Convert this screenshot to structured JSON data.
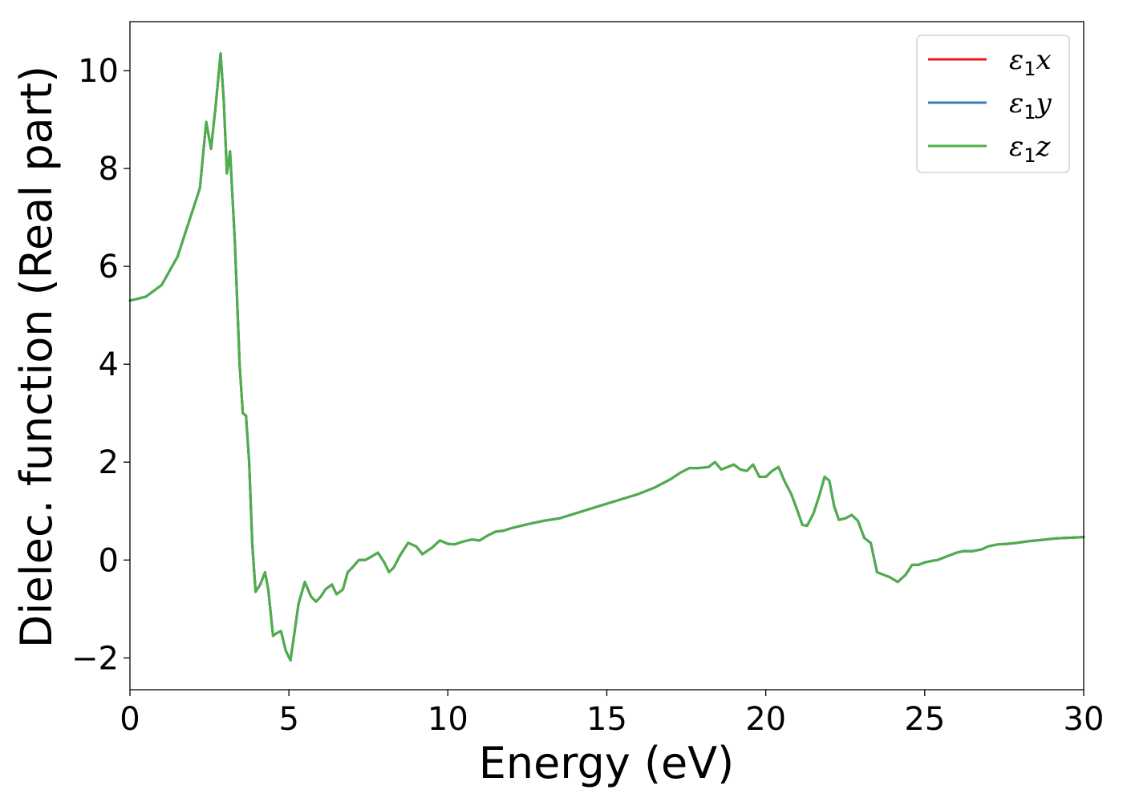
{
  "chart_data": {
    "type": "line",
    "title": "",
    "xlabel": "Energy (eV)",
    "ylabel": "Dielec. function (Real part)",
    "xlim": [
      0,
      30
    ],
    "ylim": [
      -2.65,
      11.0
    ],
    "xticks": [
      0,
      5,
      10,
      15,
      20,
      25,
      30
    ],
    "xtick_labels": [
      "0",
      "5",
      "10",
      "15",
      "20",
      "25",
      "30"
    ],
    "yticks": [
      -2,
      0,
      2,
      4,
      6,
      8,
      10
    ],
    "ytick_labels": [
      "−2",
      "0",
      "2",
      "4",
      "6",
      "8",
      "10"
    ],
    "grid": false,
    "legend_position": "top-right",
    "series": [
      {
        "name": "ε1x",
        "symbol": "ε",
        "subscript": "1",
        "axis_letter": "x",
        "color": "#e41a1c"
      },
      {
        "name": "ε1y",
        "symbol": "ε",
        "subscript": "1",
        "axis_letter": "y",
        "color": "#377eb8"
      },
      {
        "name": "ε1z",
        "symbol": "ε",
        "subscript": "1",
        "axis_letter": "z",
        "color": "#4daf4a"
      }
    ],
    "x": [
      0,
      0.5,
      1.0,
      1.5,
      1.8,
      2.0,
      2.2,
      2.4,
      2.55,
      2.7,
      2.85,
      2.95,
      3.05,
      3.15,
      3.3,
      3.45,
      3.55,
      3.65,
      3.75,
      3.85,
      3.95,
      4.1,
      4.25,
      4.35,
      4.5,
      4.6,
      4.75,
      4.9,
      5.05,
      5.15,
      5.3,
      5.5,
      5.7,
      5.85,
      6.0,
      6.15,
      6.35,
      6.5,
      6.7,
      6.85,
      7.0,
      7.2,
      7.4,
      7.6,
      7.8,
      8.0,
      8.15,
      8.3,
      8.5,
      8.75,
      9.0,
      9.2,
      9.5,
      9.75,
      10.0,
      10.2,
      10.5,
      10.75,
      11.0,
      11.25,
      11.5,
      11.75,
      12.0,
      12.5,
      13.0,
      13.5,
      14.0,
      14.5,
      15.0,
      15.5,
      16.0,
      16.5,
      17.0,
      17.3,
      17.6,
      17.9,
      18.2,
      18.4,
      18.6,
      18.8,
      19.0,
      19.2,
      19.4,
      19.6,
      19.8,
      20.0,
      20.2,
      20.4,
      20.6,
      20.8,
      21.0,
      21.15,
      21.3,
      21.5,
      21.7,
      21.85,
      22.0,
      22.15,
      22.3,
      22.5,
      22.7,
      22.9,
      23.1,
      23.3,
      23.5,
      23.7,
      23.9,
      24.15,
      24.4,
      24.6,
      24.8,
      25.0,
      25.2,
      25.4,
      25.6,
      25.8,
      26.0,
      26.2,
      26.5,
      26.8,
      27.0,
      27.3,
      27.6,
      27.9,
      28.2,
      28.5,
      28.8,
      29.1,
      29.4,
      29.7,
      30.0
    ],
    "values": [
      5.3,
      5.38,
      5.62,
      6.2,
      6.8,
      7.2,
      7.6,
      8.95,
      8.4,
      9.3,
      10.35,
      9.4,
      7.9,
      8.35,
      6.5,
      4.0,
      3.0,
      2.95,
      2.0,
      0.3,
      -0.65,
      -0.5,
      -0.25,
      -0.6,
      -1.55,
      -1.5,
      -1.45,
      -1.85,
      -2.05,
      -1.6,
      -0.9,
      -0.45,
      -0.75,
      -0.85,
      -0.75,
      -0.6,
      -0.5,
      -0.7,
      -0.6,
      -0.25,
      -0.15,
      0.0,
      0.0,
      0.07,
      0.15,
      -0.05,
      -0.25,
      -0.15,
      0.1,
      0.35,
      0.28,
      0.12,
      0.25,
      0.4,
      0.33,
      0.32,
      0.38,
      0.42,
      0.4,
      0.5,
      0.58,
      0.6,
      0.65,
      0.73,
      0.8,
      0.85,
      0.95,
      1.05,
      1.15,
      1.25,
      1.35,
      1.48,
      1.65,
      1.78,
      1.88,
      1.88,
      1.9,
      2.0,
      1.85,
      1.9,
      1.95,
      1.85,
      1.82,
      1.95,
      1.7,
      1.7,
      1.82,
      1.9,
      1.6,
      1.35,
      1.0,
      0.72,
      0.7,
      0.95,
      1.35,
      1.7,
      1.62,
      1.1,
      0.82,
      0.85,
      0.92,
      0.8,
      0.45,
      0.35,
      -0.25,
      -0.3,
      -0.35,
      -0.45,
      -0.3,
      -0.1,
      -0.1,
      -0.05,
      -0.02,
      0.0,
      0.05,
      0.1,
      0.15,
      0.18,
      0.18,
      0.22,
      0.28,
      0.32,
      0.33,
      0.35,
      0.38,
      0.4,
      0.42,
      0.44,
      0.45,
      0.46,
      0.47
    ]
  }
}
